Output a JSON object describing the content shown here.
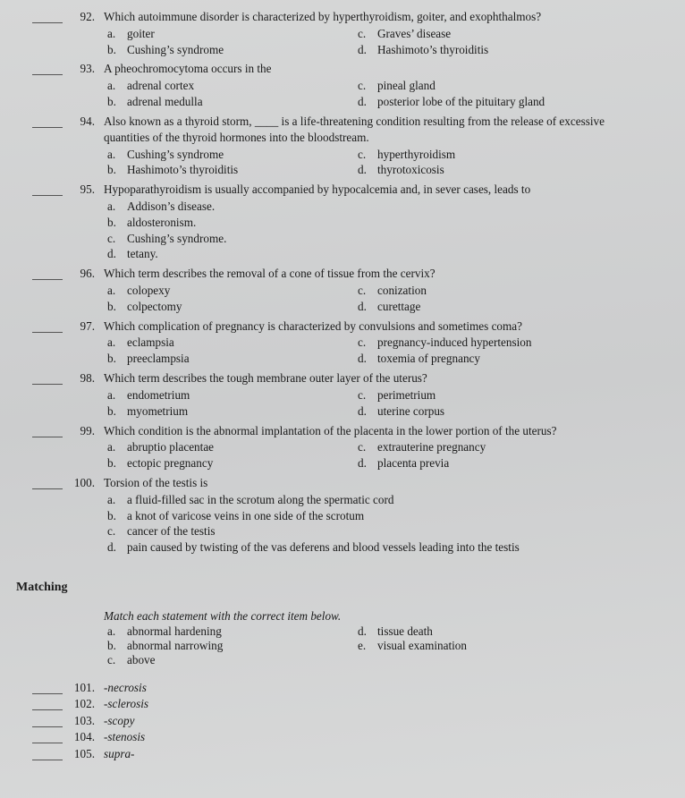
{
  "questions": [
    {
      "num": "92.",
      "stem": "Which autoimmune disorder is characterized by hyperthyroidism, goiter, and exophthalmos?",
      "layout": "two-col",
      "opts": [
        {
          "l": "a.",
          "t": "goiter"
        },
        {
          "l": "b.",
          "t": "Cushing’s syndrome"
        },
        {
          "l": "c.",
          "t": "Graves’ disease"
        },
        {
          "l": "d.",
          "t": "Hashimoto’s thyroiditis"
        }
      ]
    },
    {
      "num": "93.",
      "stem": "A pheochromocytoma occurs in the",
      "layout": "two-col",
      "opts": [
        {
          "l": "a.",
          "t": "adrenal cortex"
        },
        {
          "l": "b.",
          "t": "adrenal medulla"
        },
        {
          "l": "c.",
          "t": "pineal gland"
        },
        {
          "l": "d.",
          "t": "posterior lobe of the pituitary gland"
        }
      ]
    },
    {
      "num": "94.",
      "stem": "Also known as a thyroid storm, ____ is a life-threatening condition resulting from the release of excessive quantities of the thyroid hormones into the bloodstream.",
      "layout": "two-col",
      "opts": [
        {
          "l": "a.",
          "t": "Cushing’s syndrome"
        },
        {
          "l": "b.",
          "t": "Hashimoto’s thyroiditis"
        },
        {
          "l": "c.",
          "t": "hyperthyroidism"
        },
        {
          "l": "d.",
          "t": "thyrotoxicosis"
        }
      ]
    },
    {
      "num": "95.",
      "stem": "Hypoparathyroidism is usually accompanied by hypocalcemia and, in sever cases, leads to",
      "layout": "one-col",
      "opts": [
        {
          "l": "a.",
          "t": "Addison’s disease."
        },
        {
          "l": "b.",
          "t": "aldosteronism."
        },
        {
          "l": "c.",
          "t": "Cushing’s syndrome."
        },
        {
          "l": "d.",
          "t": "tetany."
        }
      ]
    },
    {
      "num": "96.",
      "stem": "Which term describes the removal of a cone of tissue from the cervix?",
      "layout": "two-col",
      "opts": [
        {
          "l": "a.",
          "t": "colopexy"
        },
        {
          "l": "b.",
          "t": "colpectomy"
        },
        {
          "l": "c.",
          "t": "conization"
        },
        {
          "l": "d.",
          "t": "curettage"
        }
      ]
    },
    {
      "num": "97.",
      "stem": "Which complication of pregnancy is characterized by convulsions and sometimes coma?",
      "layout": "two-col",
      "opts": [
        {
          "l": "a.",
          "t": "eclampsia"
        },
        {
          "l": "b.",
          "t": "preeclampsia"
        },
        {
          "l": "c.",
          "t": "pregnancy-induced hypertension"
        },
        {
          "l": "d.",
          "t": "toxemia of pregnancy"
        }
      ]
    },
    {
      "num": "98.",
      "stem": "Which term describes the tough membrane outer layer of the uterus?",
      "layout": "two-col",
      "opts": [
        {
          "l": "a.",
          "t": "endometrium"
        },
        {
          "l": "b.",
          "t": "myometrium"
        },
        {
          "l": "c.",
          "t": "perimetrium"
        },
        {
          "l": "d.",
          "t": "uterine corpus"
        }
      ]
    },
    {
      "num": "99.",
      "stem": "Which condition is the abnormal implantation of the placenta in the lower portion of the uterus?",
      "layout": "two-col",
      "opts": [
        {
          "l": "a.",
          "t": "abruptio placentae"
        },
        {
          "l": "b.",
          "t": "ectopic pregnancy"
        },
        {
          "l": "c.",
          "t": "extrauterine pregnancy"
        },
        {
          "l": "d.",
          "t": "placenta previa"
        }
      ]
    },
    {
      "num": "100.",
      "stem": "Torsion of the testis is",
      "layout": "one-col",
      "opts": [
        {
          "l": "a.",
          "t": "a fluid-filled sac in the scrotum along the spermatic cord"
        },
        {
          "l": "b.",
          "t": "a knot of varicose veins in one side of the scrotum"
        },
        {
          "l": "c.",
          "t": "cancer of the testis"
        },
        {
          "l": "d.",
          "t": "pain caused by twisting of the vas deferens and blood vessels leading into the testis"
        }
      ]
    }
  ],
  "matching": {
    "heading": "Matching",
    "instruction": "Match each statement with the correct item below.",
    "key": [
      {
        "l": "a.",
        "t": "abnormal hardening"
      },
      {
        "l": "b.",
        "t": "abnormal narrowing"
      },
      {
        "l": "c.",
        "t": "above"
      },
      {
        "l": "d.",
        "t": "tissue death"
      },
      {
        "l": "e.",
        "t": "visual examination"
      }
    ],
    "items": [
      {
        "num": "101.",
        "term": "-necrosis"
      },
      {
        "num": "102.",
        "term": "-sclerosis"
      },
      {
        "num": "103.",
        "term": "-scopy"
      },
      {
        "num": "104.",
        "term": "-stenosis"
      },
      {
        "num": "105.",
        "term": "supra-"
      }
    ]
  }
}
